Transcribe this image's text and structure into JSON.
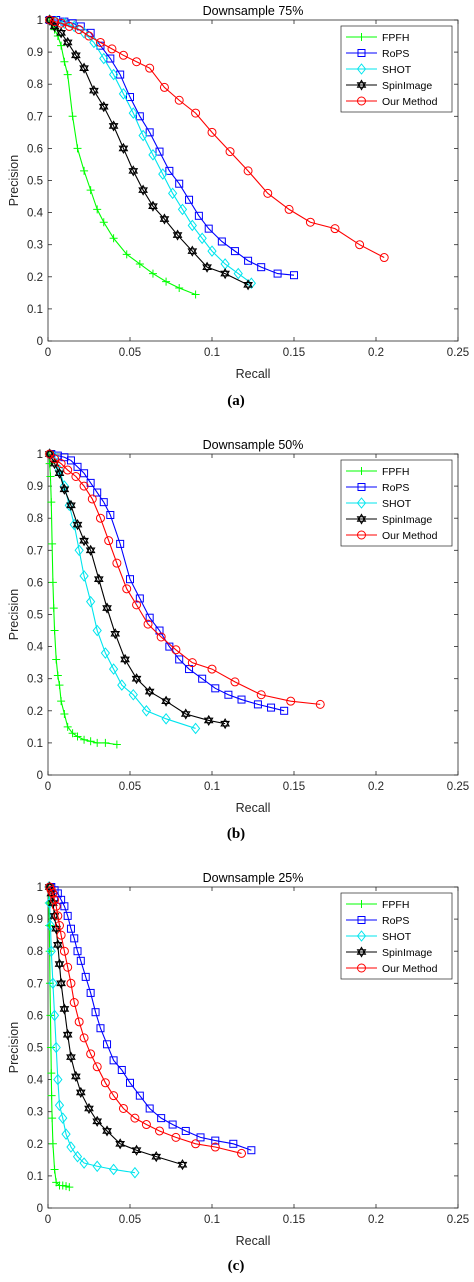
{
  "chart_data": [
    {
      "type": "line",
      "title": "Downsample 75%",
      "xlabel": "Recall",
      "ylabel": "Precision",
      "xlim": [
        0,
        0.25
      ],
      "ylim": [
        0,
        1
      ],
      "xticks": [
        "0",
        "0.05",
        "0.1",
        "0.15",
        "0.2",
        "0.25"
      ],
      "yticks": [
        "0",
        "0.1",
        "0.2",
        "0.3",
        "0.4",
        "0.5",
        "0.6",
        "0.7",
        "0.8",
        "0.9",
        "1"
      ],
      "grid": false,
      "legend_position": "top-right",
      "caption": "(a)",
      "series": [
        {
          "name": "FPFH",
          "color": "#00ff00",
          "marker": "plus",
          "x": [
            0.001,
            0.002,
            0.004,
            0.006,
            0.008,
            0.01,
            0.012,
            0.015,
            0.018,
            0.022,
            0.026,
            0.03,
            0.034,
            0.04,
            0.048,
            0.056,
            0.064,
            0.072,
            0.08,
            0.09
          ],
          "y": [
            1.0,
            0.99,
            0.97,
            0.95,
            0.92,
            0.87,
            0.83,
            0.7,
            0.6,
            0.53,
            0.47,
            0.41,
            0.37,
            0.32,
            0.27,
            0.24,
            0.21,
            0.185,
            0.165,
            0.145
          ]
        },
        {
          "name": "RoPS",
          "color": "#0000ff",
          "marker": "square",
          "x": [
            0.001,
            0.005,
            0.01,
            0.015,
            0.02,
            0.026,
            0.032,
            0.038,
            0.044,
            0.05,
            0.056,
            0.062,
            0.068,
            0.074,
            0.08,
            0.086,
            0.092,
            0.098,
            0.106,
            0.114,
            0.122,
            0.13,
            0.14,
            0.15
          ],
          "y": [
            1.0,
            1.0,
            0.995,
            0.99,
            0.98,
            0.96,
            0.92,
            0.88,
            0.83,
            0.76,
            0.7,
            0.65,
            0.59,
            0.53,
            0.49,
            0.44,
            0.39,
            0.35,
            0.31,
            0.28,
            0.25,
            0.23,
            0.21,
            0.205
          ]
        },
        {
          "name": "SHOT",
          "color": "#00e5ee",
          "marker": "diamond",
          "x": [
            0.001,
            0.005,
            0.01,
            0.016,
            0.022,
            0.028,
            0.034,
            0.04,
            0.046,
            0.052,
            0.058,
            0.064,
            0.07,
            0.076,
            0.082,
            0.088,
            0.094,
            0.1,
            0.108,
            0.116,
            0.124
          ],
          "y": [
            1.0,
            0.995,
            0.99,
            0.98,
            0.96,
            0.93,
            0.88,
            0.83,
            0.77,
            0.71,
            0.64,
            0.58,
            0.52,
            0.46,
            0.41,
            0.36,
            0.32,
            0.28,
            0.24,
            0.21,
            0.18
          ]
        },
        {
          "name": "SpinImage",
          "color": "#000000",
          "marker": "hexagram",
          "x": [
            0.001,
            0.004,
            0.008,
            0.012,
            0.017,
            0.022,
            0.028,
            0.034,
            0.04,
            0.046,
            0.052,
            0.058,
            0.064,
            0.071,
            0.079,
            0.088,
            0.097,
            0.108,
            0.122
          ],
          "y": [
            1.0,
            0.98,
            0.96,
            0.93,
            0.89,
            0.85,
            0.78,
            0.73,
            0.67,
            0.6,
            0.53,
            0.47,
            0.42,
            0.38,
            0.33,
            0.28,
            0.23,
            0.21,
            0.175
          ]
        },
        {
          "name": "Our Method",
          "color": "#ff0000",
          "marker": "circle",
          "x": [
            0.001,
            0.004,
            0.008,
            0.013,
            0.019,
            0.025,
            0.032,
            0.039,
            0.046,
            0.054,
            0.062,
            0.071,
            0.08,
            0.09,
            0.1,
            0.111,
            0.122,
            0.134,
            0.147,
            0.16,
            0.175,
            0.19,
            0.205
          ],
          "y": [
            1.0,
            0.995,
            0.99,
            0.98,
            0.97,
            0.95,
            0.93,
            0.91,
            0.89,
            0.87,
            0.85,
            0.79,
            0.75,
            0.71,
            0.65,
            0.59,
            0.53,
            0.46,
            0.41,
            0.37,
            0.35,
            0.3,
            0.26
          ]
        }
      ]
    },
    {
      "type": "line",
      "title": "Downsample 50%",
      "xlabel": "Recall",
      "ylabel": "Precision",
      "xlim": [
        0,
        0.25
      ],
      "ylim": [
        0,
        1
      ],
      "xticks": [
        "0",
        "0.05",
        "0.1",
        "0.15",
        "0.2",
        "0.25"
      ],
      "yticks": [
        "0",
        "0.1",
        "0.2",
        "0.3",
        "0.4",
        "0.5",
        "0.6",
        "0.7",
        "0.8",
        "0.9",
        "1"
      ],
      "grid": false,
      "legend_position": "top-right",
      "caption": "(b)",
      "series": [
        {
          "name": "FPFH",
          "color": "#00ff00",
          "marker": "plus",
          "x": [
            0.0005,
            0.001,
            0.0015,
            0.002,
            0.0025,
            0.003,
            0.0035,
            0.004,
            0.005,
            0.006,
            0.007,
            0.008,
            0.01,
            0.012,
            0.015,
            0.018,
            0.022,
            0.026,
            0.03,
            0.035,
            0.042
          ],
          "y": [
            1.0,
            0.97,
            0.93,
            0.85,
            0.72,
            0.6,
            0.52,
            0.45,
            0.36,
            0.31,
            0.28,
            0.23,
            0.19,
            0.15,
            0.13,
            0.12,
            0.11,
            0.105,
            0.1,
            0.1,
            0.095
          ]
        },
        {
          "name": "RoPS",
          "color": "#0000ff",
          "marker": "square",
          "x": [
            0.002,
            0.006,
            0.01,
            0.014,
            0.018,
            0.022,
            0.026,
            0.03,
            0.034,
            0.038,
            0.044,
            0.05,
            0.056,
            0.062,
            0.068,
            0.074,
            0.08,
            0.086,
            0.094,
            0.102,
            0.11,
            0.118,
            0.128,
            0.136,
            0.144
          ],
          "y": [
            1.0,
            0.995,
            0.99,
            0.98,
            0.96,
            0.94,
            0.91,
            0.88,
            0.85,
            0.81,
            0.72,
            0.61,
            0.55,
            0.49,
            0.45,
            0.4,
            0.36,
            0.33,
            0.3,
            0.27,
            0.25,
            0.235,
            0.22,
            0.21,
            0.2
          ]
        },
        {
          "name": "SHOT",
          "color": "#00e5ee",
          "marker": "diamond",
          "x": [
            0.001,
            0.004,
            0.007,
            0.01,
            0.013,
            0.016,
            0.019,
            0.022,
            0.026,
            0.03,
            0.035,
            0.04,
            0.045,
            0.052,
            0.06,
            0.072,
            0.09
          ],
          "y": [
            1.0,
            0.99,
            0.95,
            0.9,
            0.84,
            0.78,
            0.7,
            0.62,
            0.54,
            0.45,
            0.38,
            0.33,
            0.28,
            0.25,
            0.2,
            0.175,
            0.145
          ]
        },
        {
          "name": "SpinImage",
          "color": "#000000",
          "marker": "hexagram",
          "x": [
            0.001,
            0.004,
            0.007,
            0.01,
            0.014,
            0.018,
            0.022,
            0.026,
            0.031,
            0.036,
            0.041,
            0.047,
            0.054,
            0.062,
            0.072,
            0.084,
            0.098,
            0.108
          ],
          "y": [
            1.0,
            0.97,
            0.94,
            0.89,
            0.84,
            0.78,
            0.73,
            0.7,
            0.61,
            0.52,
            0.44,
            0.36,
            0.3,
            0.26,
            0.23,
            0.19,
            0.17,
            0.16
          ]
        },
        {
          "name": "Our Method",
          "color": "#ff0000",
          "marker": "circle",
          "x": [
            0.001,
            0.004,
            0.008,
            0.012,
            0.017,
            0.022,
            0.027,
            0.032,
            0.037,
            0.042,
            0.048,
            0.054,
            0.061,
            0.069,
            0.078,
            0.088,
            0.1,
            0.114,
            0.13,
            0.148,
            0.166
          ],
          "y": [
            1.0,
            0.985,
            0.97,
            0.95,
            0.93,
            0.9,
            0.86,
            0.8,
            0.73,
            0.66,
            0.58,
            0.53,
            0.47,
            0.43,
            0.39,
            0.35,
            0.33,
            0.29,
            0.25,
            0.23,
            0.22
          ]
        }
      ]
    },
    {
      "type": "line",
      "title": "Downsample 25%",
      "xlabel": "Recall",
      "ylabel": "Precision",
      "xlim": [
        0,
        0.25
      ],
      "ylim": [
        0,
        1
      ],
      "xticks": [
        "0",
        "0.05",
        "0.1",
        "0.15",
        "0.2",
        "0.25"
      ],
      "yticks": [
        "0",
        "0.1",
        "0.2",
        "0.3",
        "0.4",
        "0.5",
        "0.6",
        "0.7",
        "0.8",
        "0.9",
        "1"
      ],
      "grid": false,
      "legend_position": "top-right",
      "caption": "(c)",
      "series": [
        {
          "name": "FPFH",
          "color": "#00ff00",
          "marker": "plus",
          "x": [
            0.0003,
            0.0005,
            0.0008,
            0.001,
            0.0012,
            0.0015,
            0.0018,
            0.002,
            0.0022,
            0.0025,
            0.003,
            0.004,
            0.005,
            0.007,
            0.009,
            0.011,
            0.013
          ],
          "y": [
            1.0,
            0.95,
            0.88,
            0.8,
            0.7,
            0.6,
            0.5,
            0.42,
            0.35,
            0.28,
            0.2,
            0.12,
            0.08,
            0.07,
            0.07,
            0.068,
            0.065
          ]
        },
        {
          "name": "RoPS",
          "color": "#0000ff",
          "marker": "square",
          "x": [
            0.002,
            0.004,
            0.006,
            0.008,
            0.01,
            0.012,
            0.014,
            0.016,
            0.018,
            0.02,
            0.023,
            0.026,
            0.029,
            0.032,
            0.036,
            0.04,
            0.045,
            0.05,
            0.056,
            0.062,
            0.069,
            0.076,
            0.084,
            0.093,
            0.102,
            0.113,
            0.124
          ],
          "y": [
            1.0,
            0.99,
            0.98,
            0.96,
            0.94,
            0.91,
            0.87,
            0.84,
            0.8,
            0.77,
            0.72,
            0.67,
            0.61,
            0.56,
            0.51,
            0.46,
            0.43,
            0.39,
            0.35,
            0.31,
            0.28,
            0.26,
            0.24,
            0.22,
            0.21,
            0.2,
            0.18
          ]
        },
        {
          "name": "SHOT",
          "color": "#00e5ee",
          "marker": "diamond",
          "x": [
            0.0005,
            0.001,
            0.0015,
            0.002,
            0.003,
            0.004,
            0.005,
            0.006,
            0.007,
            0.009,
            0.011,
            0.014,
            0.018,
            0.022,
            0.03,
            0.04,
            0.053
          ],
          "y": [
            1.0,
            0.95,
            0.88,
            0.8,
            0.7,
            0.6,
            0.5,
            0.4,
            0.32,
            0.28,
            0.23,
            0.19,
            0.16,
            0.14,
            0.13,
            0.12,
            0.11
          ]
        },
        {
          "name": "SpinImage",
          "color": "#000000",
          "marker": "hexagram",
          "x": [
            0.001,
            0.002,
            0.003,
            0.004,
            0.005,
            0.006,
            0.007,
            0.008,
            0.01,
            0.012,
            0.014,
            0.017,
            0.02,
            0.025,
            0.03,
            0.036,
            0.044,
            0.054,
            0.066,
            0.082
          ],
          "y": [
            1.0,
            0.98,
            0.95,
            0.91,
            0.87,
            0.82,
            0.76,
            0.7,
            0.62,
            0.54,
            0.47,
            0.41,
            0.36,
            0.31,
            0.27,
            0.24,
            0.2,
            0.18,
            0.16,
            0.135
          ]
        },
        {
          "name": "Our Method",
          "color": "#ff0000",
          "marker": "circle",
          "x": [
            0.001,
            0.002,
            0.003,
            0.004,
            0.005,
            0.006,
            0.007,
            0.008,
            0.01,
            0.012,
            0.014,
            0.016,
            0.019,
            0.022,
            0.026,
            0.03,
            0.035,
            0.04,
            0.046,
            0.053,
            0.06,
            0.068,
            0.078,
            0.09,
            0.102,
            0.118
          ],
          "y": [
            1.0,
            0.99,
            0.98,
            0.96,
            0.94,
            0.91,
            0.88,
            0.85,
            0.8,
            0.75,
            0.7,
            0.64,
            0.58,
            0.53,
            0.48,
            0.44,
            0.39,
            0.35,
            0.31,
            0.28,
            0.26,
            0.24,
            0.22,
            0.2,
            0.19,
            0.17
          ]
        }
      ]
    }
  ]
}
